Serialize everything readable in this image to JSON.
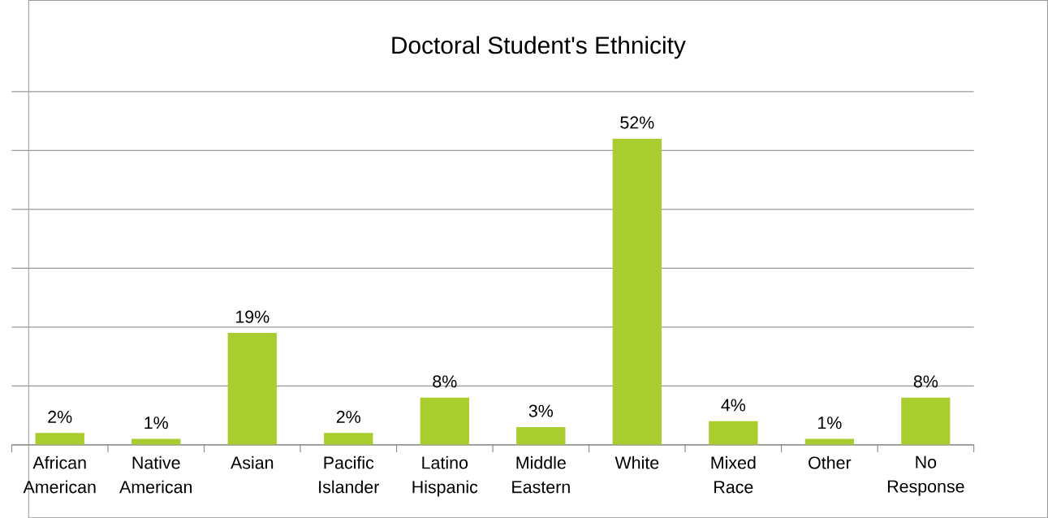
{
  "chart_data": {
    "type": "bar",
    "title": "Doctoral Student's Ethnicity",
    "categories": [
      "African American",
      "Native American",
      "Asian",
      "Pacific Islander",
      "Latino Hispanic",
      "Middle Eastern",
      "White",
      "Mixed Race",
      "Other",
      "No Response"
    ],
    "values": [
      2,
      1,
      19,
      2,
      8,
      3,
      52,
      4,
      1,
      8
    ],
    "value_labels": [
      "2%",
      "1%",
      "19%",
      "2%",
      "8%",
      "3%",
      "52%",
      "4%",
      "1%",
      "8%"
    ],
    "color": "#a9cd2e",
    "ylim": [
      0,
      60
    ],
    "yticks": [
      {
        "value": 0,
        "label": null
      },
      {
        "value": 10,
        "label": null
      },
      {
        "value": 20,
        "label": null
      },
      {
        "value": 30,
        "label": null
      },
      {
        "value": 40,
        "label": null
      },
      {
        "value": 50,
        "label": null
      },
      {
        "value": 60,
        "label": null
      }
    ],
    "grid": "y",
    "tick_labels": "x"
  }
}
